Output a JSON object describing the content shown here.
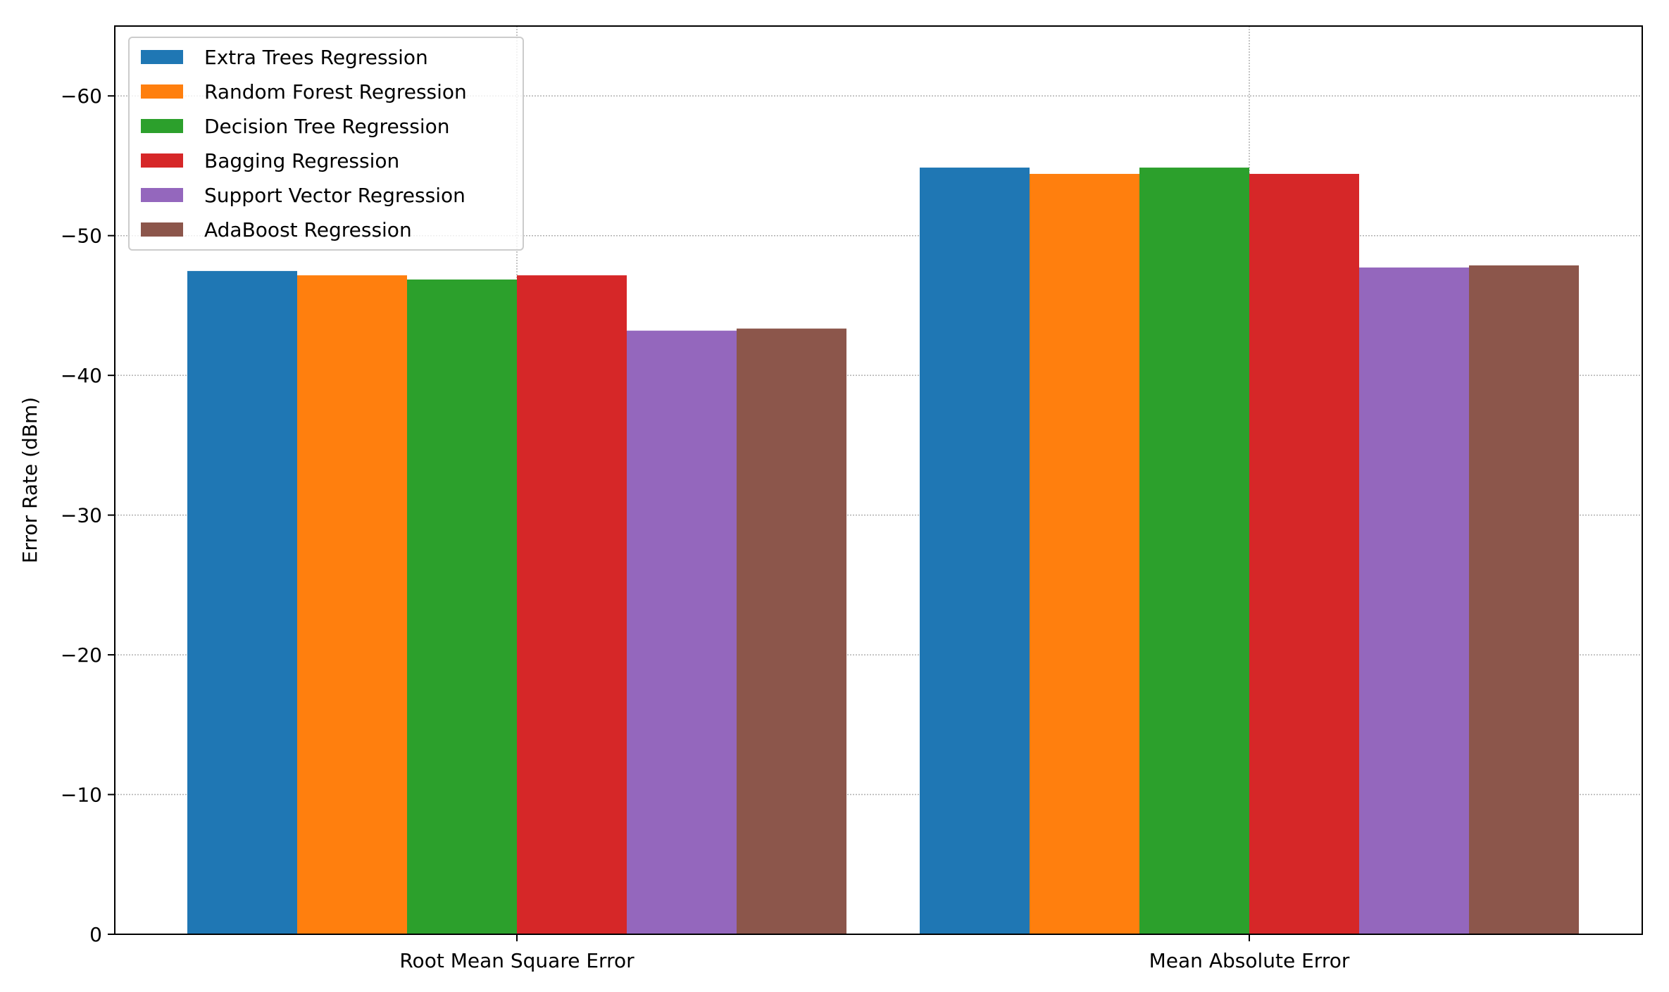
{
  "chart_data": {
    "type": "bar",
    "title": "",
    "xlabel": "",
    "ylabel": "Error Rate (dBm)",
    "ylim": [
      0,
      -65
    ],
    "y_inverted": true,
    "yticks": [
      0,
      -10,
      -20,
      -30,
      -40,
      -50,
      -60
    ],
    "ytick_labels": [
      "0",
      "−10",
      "−20",
      "−30",
      "−40",
      "−50",
      "−60"
    ],
    "grid": true,
    "legend_position": "top-left",
    "categories": [
      "Root Mean Square Error",
      "Mean Absolute Error"
    ],
    "series": [
      {
        "name": "Extra Trees Regression",
        "color": "#1f77b4",
        "values": [
          -47.47,
          -54.87
        ]
      },
      {
        "name": "Random Forest Regression",
        "color": "#ff7f0e",
        "values": [
          -47.16,
          -54.42
        ]
      },
      {
        "name": "Decision Tree Regression",
        "color": "#2ca02c",
        "values": [
          -46.86,
          -54.87
        ]
      },
      {
        "name": "Bagging Regression",
        "color": "#d62728",
        "values": [
          -47.16,
          -54.42
        ]
      },
      {
        "name": "Support Vector Regression",
        "color": "#9467bd",
        "values": [
          -43.2,
          -47.72
        ]
      },
      {
        "name": "AdaBoost Regression",
        "color": "#8c564b",
        "values": [
          -43.35,
          -47.87
        ]
      }
    ]
  }
}
